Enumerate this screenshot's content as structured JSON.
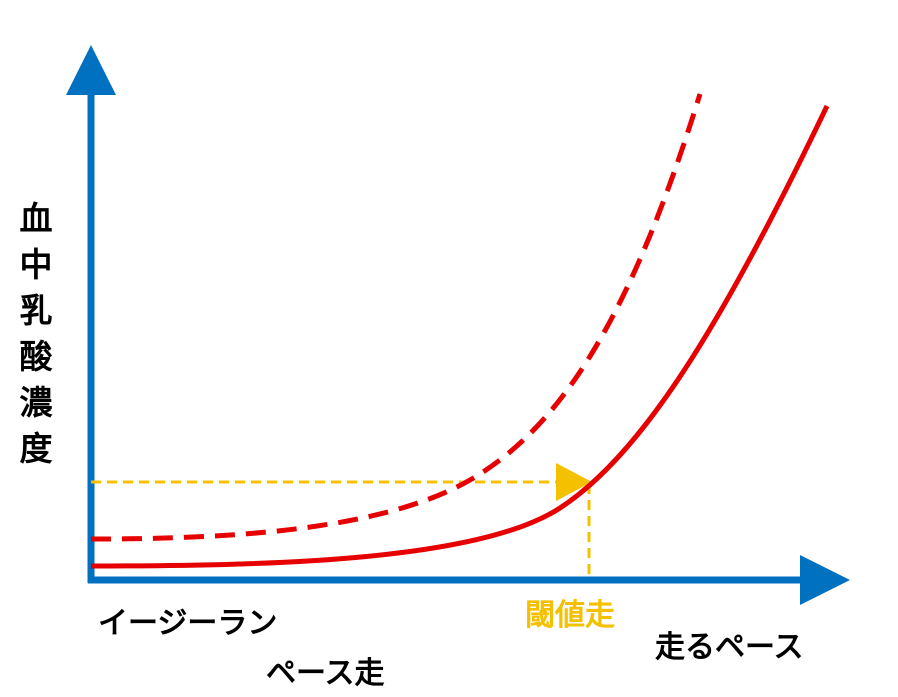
{
  "diagram": {
    "y_axis_label": "血中乳酸濃度",
    "x_axis_label": "走るペース",
    "easy_run_label_line1": "イージーラン",
    "easy_run_label_line2": "ペース走",
    "threshold_label": "閾値走",
    "colors": {
      "axis": "#0070c0",
      "curve": "#e60000",
      "threshold": "#f5c000",
      "text": "#000000"
    }
  }
}
